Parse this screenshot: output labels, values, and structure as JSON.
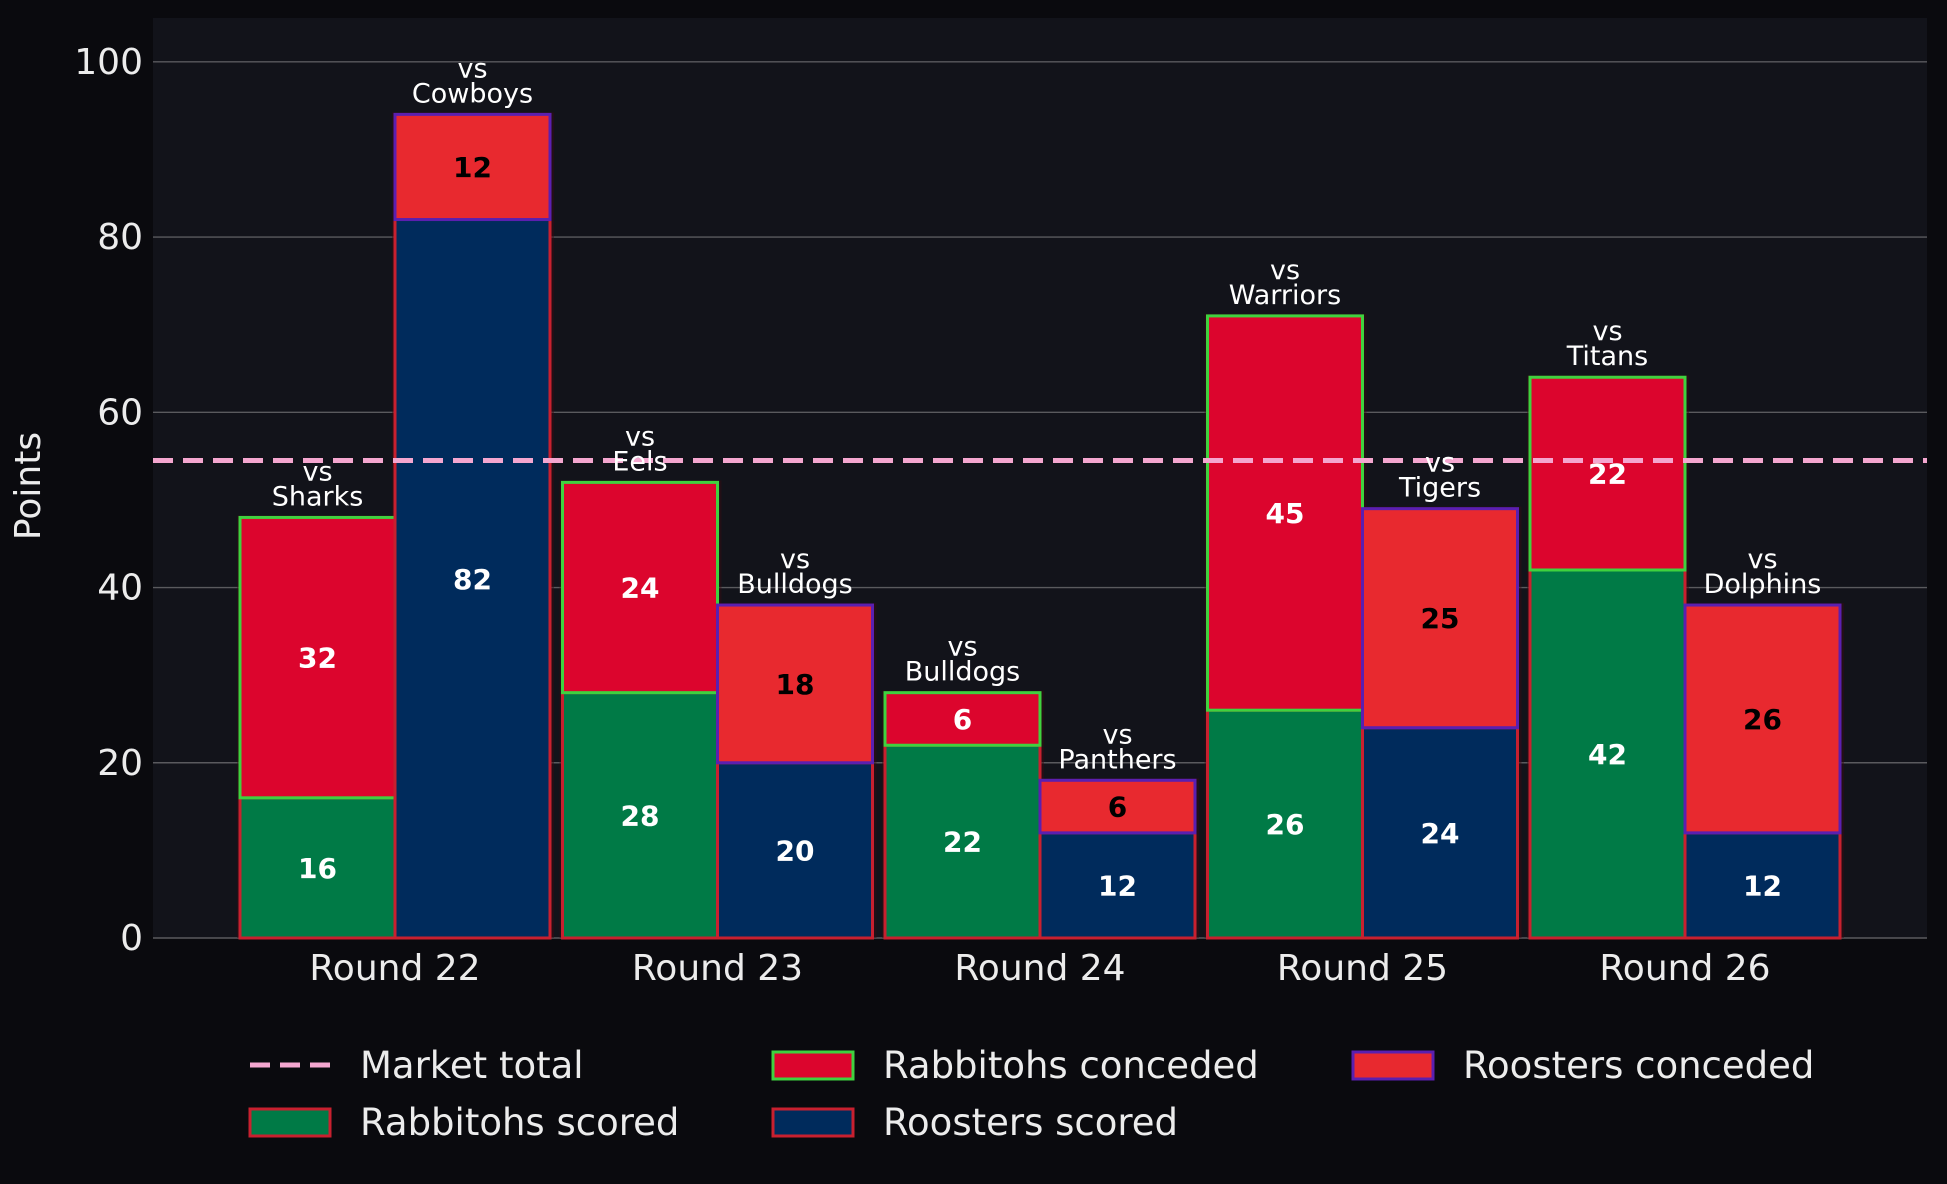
{
  "chart_data": {
    "type": "bar",
    "subtype": "grouped-stacked",
    "title": "",
    "xlabel": "",
    "ylabel": "Points",
    "ylim": [
      0,
      105
    ],
    "yticks": [
      0,
      20,
      40,
      60,
      80,
      100
    ],
    "grid": "horizontal",
    "legend_placement": "bottom-center",
    "categories": [
      "Round 22",
      "Round 23",
      "Round 24",
      "Round 25",
      "Round 26"
    ],
    "reference_line": {
      "name": "Market total",
      "value": 54.5,
      "style": "dashed",
      "color": "#f4a6cf"
    },
    "teams": [
      {
        "team": "Rabbitohs",
        "opponents": [
          "vs\nSharks",
          "vs\nEels",
          "vs\nBulldogs",
          "vs\nWarriors",
          "vs\nTitans"
        ],
        "series": [
          {
            "name": "Rabbitohs scored",
            "values": [
              16,
              28,
              22,
              26,
              42
            ],
            "fill": "#007a46",
            "edge": "#c8202f",
            "label_color": "#ffffff"
          },
          {
            "name": "Rabbitohs conceded",
            "values": [
              32,
              24,
              6,
              45,
              22
            ],
            "fill": "#dc052d",
            "edge": "#3fd23f",
            "label_color": "#ffffff"
          }
        ]
      },
      {
        "team": "Roosters",
        "opponents": [
          "vs\nCowboys",
          "vs\nBulldogs",
          "vs\nPanthers",
          "vs\nTigers",
          "vs\nDolphins"
        ],
        "series": [
          {
            "name": "Roosters scored",
            "values": [
              82,
              20,
              12,
              24,
              12
            ],
            "fill": "#002b5c",
            "edge": "#c8202f",
            "label_color": "#ffffff"
          },
          {
            "name": "Roosters conceded",
            "values": [
              12,
              18,
              6,
              25,
              26
            ],
            "fill": "#e8292f",
            "edge": "#5b1fb0",
            "label_color": "#000000"
          }
        ]
      }
    ],
    "legend": [
      {
        "kind": "line",
        "label": "Market total",
        "color": "#f4a6cf"
      },
      {
        "kind": "patch",
        "label": "Rabbitohs scored",
        "fill": "#007a46",
        "edge": "#c8202f"
      },
      {
        "kind": "patch",
        "label": "Rabbitohs conceded",
        "fill": "#dc052d",
        "edge": "#3fd23f"
      },
      {
        "kind": "patch",
        "label": "Roosters scored",
        "fill": "#002b5c",
        "edge": "#c8202f"
      },
      {
        "kind": "patch",
        "label": "Roosters conceded",
        "fill": "#e8292f",
        "edge": "#5b1fb0"
      }
    ],
    "colors": {
      "figure_background": "#0a0a0e",
      "plot_background": "#12131a",
      "grid": "#5a5a5e",
      "text": "#ececec"
    }
  }
}
